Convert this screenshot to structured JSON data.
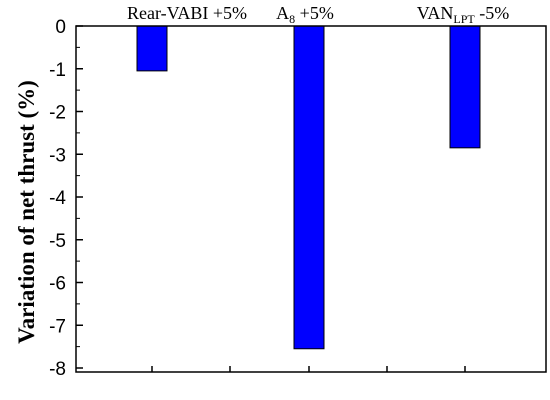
{
  "chart_data": {
    "type": "bar",
    "categories": [
      {
        "label": "Rear-VABI +5%",
        "main": "Rear-VABI +5%",
        "sub": "",
        "suffix": ""
      },
      {
        "label": "A8 +5%",
        "main": "A",
        "sub": "8",
        "suffix": " +5%"
      },
      {
        "label": "VANLPT -5%",
        "main": "VAN",
        "sub": "LPT",
        "suffix": " -5%"
      }
    ],
    "values": [
      -1.05,
      -7.55,
      -2.85
    ],
    "title": "",
    "xlabel": "",
    "ylabel": "Variation of net thrust (%)",
    "ylim": [
      -8,
      0
    ],
    "yticks": [
      0,
      -1,
      -2,
      -3,
      -4,
      -5,
      -6,
      -7,
      -8
    ],
    "grid": false,
    "legend": "none",
    "bar_color": "#0000ff",
    "bar_edge_color": "#000000"
  }
}
